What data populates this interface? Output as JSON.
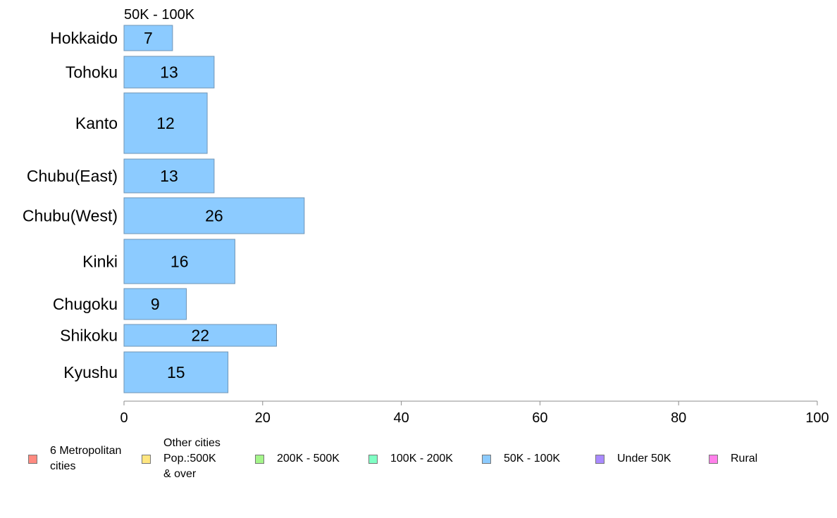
{
  "chart_data": {
    "type": "bar",
    "orientation": "horizontal",
    "title": "50K - 100K",
    "categories": [
      "Hokkaido",
      "Tohoku",
      "Kanto",
      "Chubu(East)",
      "Chubu(West)",
      "Kinki",
      "Chugoku",
      "Shikoku",
      "Kyushu"
    ],
    "values": [
      7,
      13,
      12,
      13,
      26,
      16,
      9,
      22,
      15
    ],
    "xlim": [
      0,
      100
    ],
    "xticks": [
      0,
      20,
      40,
      60,
      80,
      100
    ],
    "xlabel": "",
    "ylabel": "",
    "bar_color": "#8ccbff",
    "bar_edge_color": "#6f94b6",
    "grid": false,
    "legend_position": "bottom",
    "legend": [
      {
        "label": "6 Metropolitan\n cities",
        "color": "#ff8a80"
      },
      {
        "label": "Other cities\nPop.:500K\n & over",
        "color": "#ffe680"
      },
      {
        "label": "200K - 500K",
        "color": "#a4f58a"
      },
      {
        "label": "100K - 200K",
        "color": "#80ffc4"
      },
      {
        "label": "50K - 100K",
        "color": "#8ccbff"
      },
      {
        "label": "Under 50K",
        "color": "#a98aff"
      },
      {
        "label": "Rural",
        "color": "#ff80ea"
      }
    ]
  }
}
